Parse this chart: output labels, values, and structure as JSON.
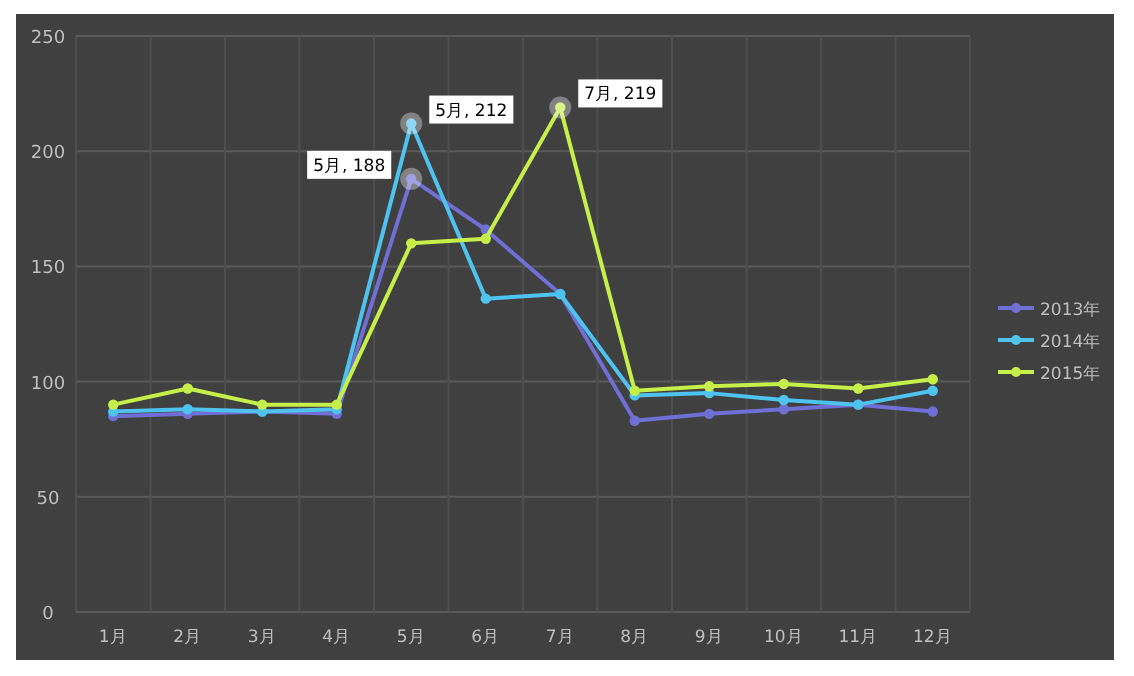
{
  "chart_data": {
    "type": "line",
    "categories": [
      "1月",
      "2月",
      "3月",
      "4月",
      "5月",
      "6月",
      "7月",
      "8月",
      "9月",
      "10月",
      "11月",
      "12月"
    ],
    "series": [
      {
        "name": "2013年",
        "color": "#6f6fd6",
        "values": [
          85,
          86,
          87,
          86,
          188,
          166,
          138,
          83,
          86,
          88,
          90,
          87
        ]
      },
      {
        "name": "2014年",
        "color": "#4fc3f0",
        "values": [
          87,
          88,
          87,
          88,
          212,
          136,
          138,
          94,
          95,
          92,
          90,
          96
        ]
      },
      {
        "name": "2015年",
        "color": "#c6ef4a",
        "values": [
          90,
          97,
          90,
          90,
          160,
          162,
          219,
          96,
          98,
          99,
          97,
          101
        ]
      }
    ],
    "annotations": [
      {
        "text": "5月, 188",
        "x": "5月",
        "y": 188
      },
      {
        "text": "5月, 212",
        "x": "5月",
        "y": 212
      },
      {
        "text": "7月, 219",
        "x": "7月",
        "y": 219
      }
    ],
    "ylim": [
      0,
      250
    ],
    "yticks": [
      0,
      50,
      100,
      150,
      200,
      250
    ],
    "grid": true,
    "legend": "right",
    "marker": "circle",
    "line_style": "solid"
  }
}
